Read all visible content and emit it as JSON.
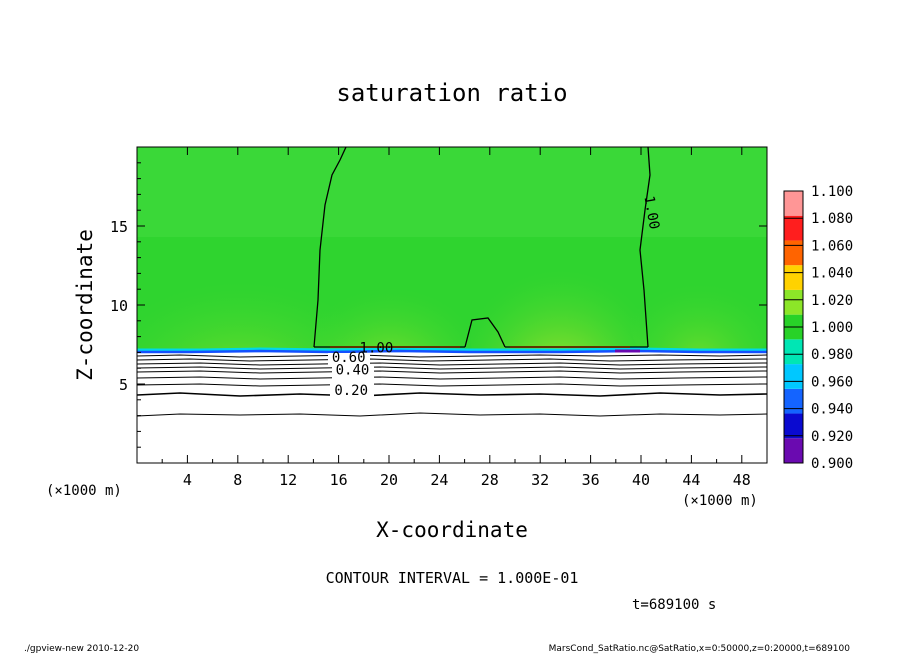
{
  "chart_data": {
    "type": "heatmap",
    "title": "saturation ratio",
    "xlabel": "X-coordinate",
    "ylabel": "Z-coordinate",
    "x_unit_left": "(×1000 m)",
    "x_unit_right": "(×1000 m)",
    "xlim": [
      0,
      50
    ],
    "ylim": [
      0,
      20
    ],
    "x_ticks": [
      4,
      8,
      12,
      16,
      20,
      24,
      28,
      32,
      36,
      40,
      44,
      48
    ],
    "y_ticks": [
      5,
      10,
      15
    ],
    "contour_interval_text": "CONTOUR INTERVAL = 1.000E-01",
    "time_text": "t=689100 s",
    "contour_labels": [
      {
        "text": "1.00",
        "x": 40.5,
        "z": 15.8,
        "rotate": -80
      },
      {
        "text": "1.00",
        "x": 19.0,
        "z": 7.0,
        "rotate": 0
      },
      {
        "text": "0.60",
        "x": 16.8,
        "z": 6.4,
        "rotate": 0
      },
      {
        "text": "0.40",
        "x": 17.1,
        "z": 5.6,
        "rotate": 0
      },
      {
        "text": "0.20",
        "x": 17.0,
        "z": 4.3,
        "rotate": 0
      }
    ],
    "colorbar": {
      "levels": [
        0.9,
        0.92,
        0.94,
        0.96,
        0.98,
        1.0,
        1.02,
        1.04,
        1.06,
        1.08,
        1.1
      ],
      "level_labels": [
        "0.900",
        "0.920",
        "0.940",
        "0.960",
        "0.980",
        "1.000",
        "1.020",
        "1.040",
        "1.060",
        "1.080",
        "1.100"
      ],
      "colors": [
        "#6a0ab0",
        "#0a0ad0",
        "#1464ff",
        "#00c8ff",
        "#00e6b4",
        "#28d228",
        "#8ce628",
        "#ffd200",
        "#ff6400",
        "#ff1e1e",
        "#ff9696"
      ]
    },
    "low_value_shading": "white",
    "saturated_layer_base_z": 7.0
  },
  "footer": {
    "left": "./gpview-new  2010-12-20",
    "right": "MarsCond_SatRatio.nc@SatRatio,x=0:50000,z=0:20000,t=689100"
  }
}
